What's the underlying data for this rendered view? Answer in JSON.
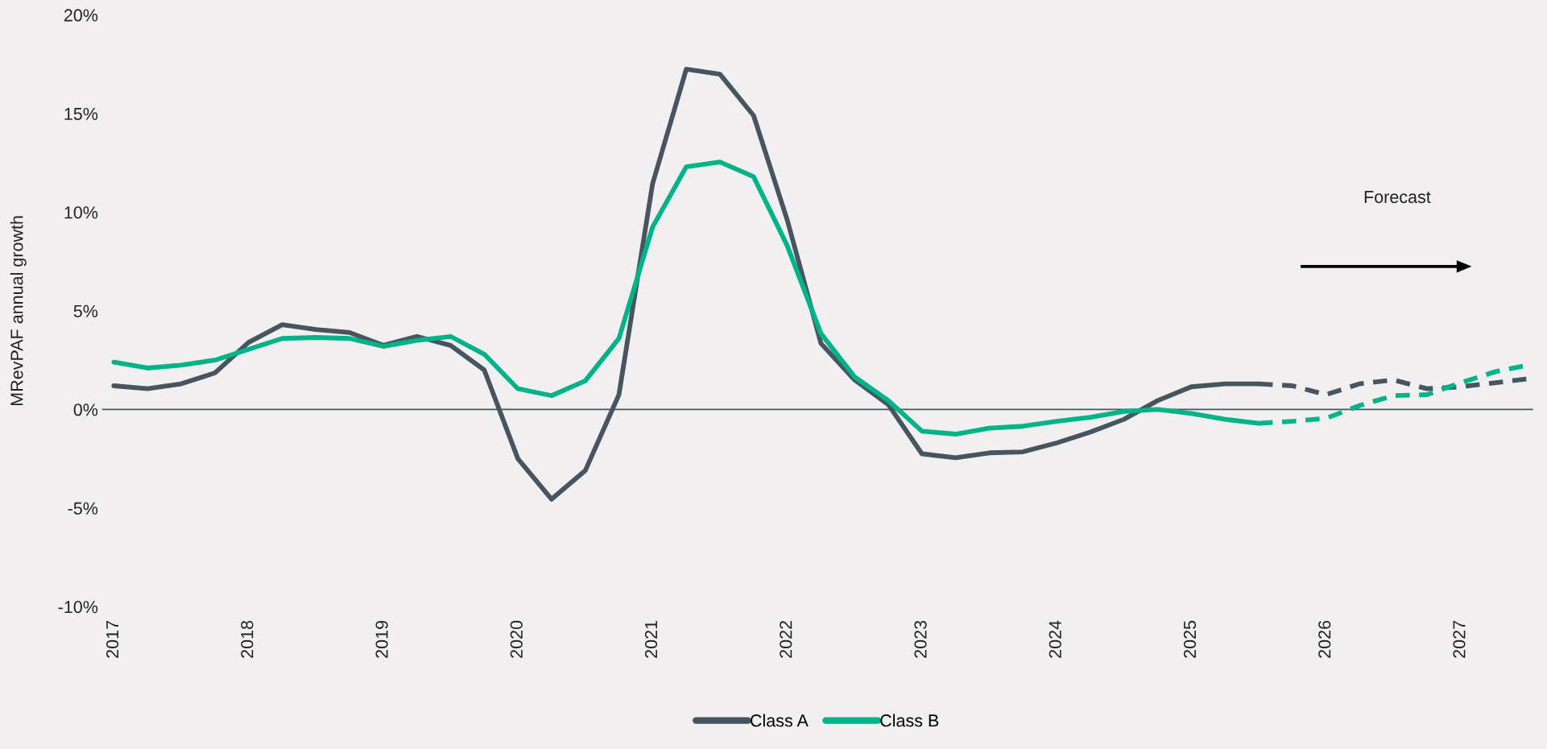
{
  "chart_data": {
    "type": "line",
    "ylabel": "MRevPAF annual growth",
    "categories": [
      "2017",
      null,
      null,
      null,
      "2018",
      null,
      null,
      null,
      "2019",
      null,
      null,
      null,
      "2020",
      null,
      null,
      null,
      "2021",
      null,
      null,
      null,
      "2022",
      null,
      null,
      null,
      "2023",
      null,
      null,
      null,
      "2024",
      null,
      null,
      null,
      "2025",
      null,
      null,
      null,
      "2026",
      null,
      null,
      null,
      "2027",
      null,
      null
    ],
    "series": [
      {
        "name": "Class A",
        "color": "#475560",
        "line_style": "solid",
        "values": [
          1.2,
          1.05,
          1.3,
          1.85,
          3.4,
          4.3,
          4.05,
          3.9,
          3.25,
          3.7,
          3.25,
          2.0,
          -2.5,
          -4.55,
          -3.1,
          0.75,
          11.45,
          17.25,
          17.0,
          14.9,
          9.6,
          3.35,
          1.5,
          0.25,
          -2.25,
          -2.45,
          -2.2,
          -2.15,
          -1.7,
          -1.15,
          -0.5,
          0.45,
          1.15,
          1.3,
          1.3,
          null,
          null,
          null,
          null,
          null,
          null,
          null,
          null
        ]
      },
      {
        "name": "Class B",
        "color": "#00b388",
        "line_style": "solid",
        "values": [
          2.4,
          2.1,
          2.25,
          2.5,
          3.05,
          3.6,
          3.65,
          3.6,
          3.2,
          3.5,
          3.7,
          2.8,
          1.05,
          0.7,
          1.45,
          3.6,
          9.25,
          12.3,
          12.55,
          11.8,
          8.3,
          3.85,
          1.65,
          0.45,
          -1.1,
          -1.25,
          -0.95,
          -0.85,
          -0.6,
          -0.4,
          -0.1,
          0.0,
          -0.2,
          -0.5,
          -0.7,
          null,
          null,
          null,
          null,
          null,
          null,
          null,
          null
        ]
      },
      {
        "color": "#475560",
        "line_style": "dashed",
        "values": [
          null,
          null,
          null,
          null,
          null,
          null,
          null,
          null,
          null,
          null,
          null,
          null,
          null,
          null,
          null,
          null,
          null,
          null,
          null,
          null,
          null,
          null,
          null,
          null,
          null,
          null,
          null,
          null,
          null,
          null,
          null,
          null,
          null,
          null,
          1.3,
          1.2,
          0.75,
          1.3,
          1.5,
          1.05,
          1.15,
          1.35,
          1.55
        ]
      },
      {
        "color": "#00b388",
        "line_style": "dashed",
        "values": [
          null,
          null,
          null,
          null,
          null,
          null,
          null,
          null,
          null,
          null,
          null,
          null,
          null,
          null,
          null,
          null,
          null,
          null,
          null,
          null,
          null,
          null,
          null,
          null,
          null,
          null,
          null,
          null,
          null,
          null,
          null,
          null,
          null,
          null,
          -0.7,
          -0.6,
          -0.45,
          0.2,
          0.7,
          0.75,
          1.35,
          1.9,
          2.25
        ]
      }
    ],
    "ylim": [
      -10,
      20
    ],
    "yticks": [
      {
        "value": -10,
        "label": "-10%"
      },
      {
        "value": -5,
        "label": "-5%"
      },
      {
        "value": 0,
        "label": "0%"
      },
      {
        "value": 5,
        "label": "5%"
      },
      {
        "value": 10,
        "label": "10%"
      },
      {
        "value": 15,
        "label": "15%"
      },
      {
        "value": 20,
        "label": "20%"
      }
    ],
    "ref_lines": [
      {
        "axis": "y",
        "value": 0,
        "color": "#475560"
      }
    ],
    "annotations": [
      "Forecast"
    ],
    "grid": false,
    "legend": "bottom",
    "marker": "none"
  }
}
